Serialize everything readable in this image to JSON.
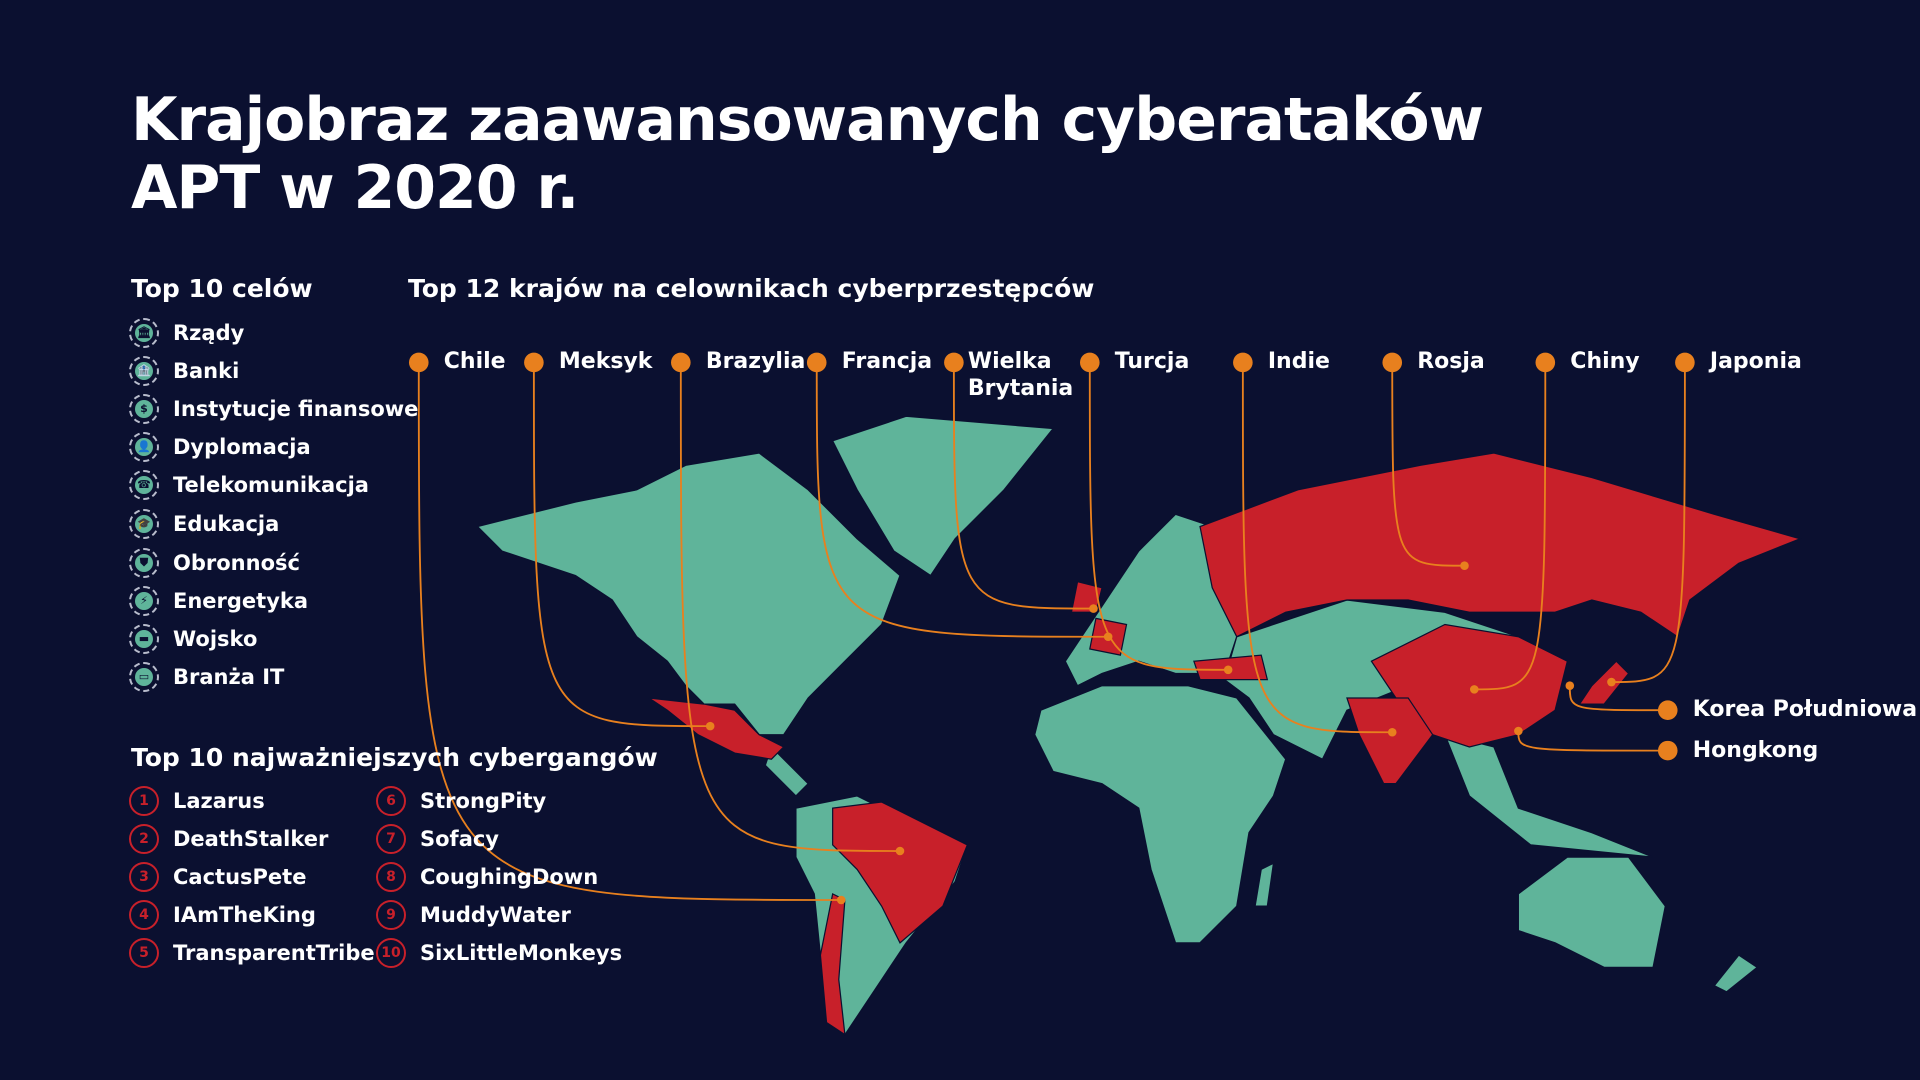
{
  "title_line1": "Krajobraz zaawansowanych cyberataków",
  "title_line2": "APT w 2020 r.",
  "targets": {
    "heading": "Top 10 celów",
    "items": [
      {
        "label": "Rządy",
        "icon": "government-building-icon"
      },
      {
        "label": "Banki",
        "icon": "bank-icon"
      },
      {
        "label": "Instytucje finansowe",
        "icon": "money-bag-icon"
      },
      {
        "label": "Dyplomacja",
        "icon": "diplomat-icon"
      },
      {
        "label": "Telekomunikacja",
        "icon": "telecom-head-icon"
      },
      {
        "label": "Edukacja",
        "icon": "graduation-cap-icon"
      },
      {
        "label": "Obronność",
        "icon": "shield-icon"
      },
      {
        "label": "Energetyka",
        "icon": "lightning-icon"
      },
      {
        "label": "Wojsko",
        "icon": "tank-icon"
      },
      {
        "label": "Branża IT",
        "icon": "monitor-icon"
      }
    ]
  },
  "gangs": {
    "heading": "Top 10 najważniejszych cybergangów",
    "items": [
      {
        "num": "1",
        "label": "Lazarus"
      },
      {
        "num": "2",
        "label": "DeathStalker"
      },
      {
        "num": "3",
        "label": "CactusPete"
      },
      {
        "num": "4",
        "label": "IAmTheKing"
      },
      {
        "num": "5",
        "label": "TransparentTribe"
      },
      {
        "num": "6",
        "label": "StrongPity"
      },
      {
        "num": "7",
        "label": "Sofacy"
      },
      {
        "num": "8",
        "label": "CoughingDown"
      },
      {
        "num": "9",
        "label": "MuddyWater"
      },
      {
        "num": "10",
        "label": "SixLittleMonkeys"
      }
    ]
  },
  "map": {
    "heading": "Top 12 krajów na celownikach cyberprzestępców",
    "countries": [
      {
        "label": "Chile"
      },
      {
        "label": "Meksyk"
      },
      {
        "label": "Brazylia"
      },
      {
        "label": "Francja"
      },
      {
        "label": "Wielka Brytania"
      },
      {
        "label": "Turcja"
      },
      {
        "label": "Indie"
      },
      {
        "label": "Rosja"
      },
      {
        "label": "Chiny"
      },
      {
        "label": "Japonia"
      },
      {
        "label": "Korea Południowa"
      },
      {
        "label": "Hongkong"
      }
    ]
  },
  "colors": {
    "background": "#0b1030",
    "land": "#5fb49a",
    "targeted": "#c8202a",
    "accent": "#e8801e"
  }
}
